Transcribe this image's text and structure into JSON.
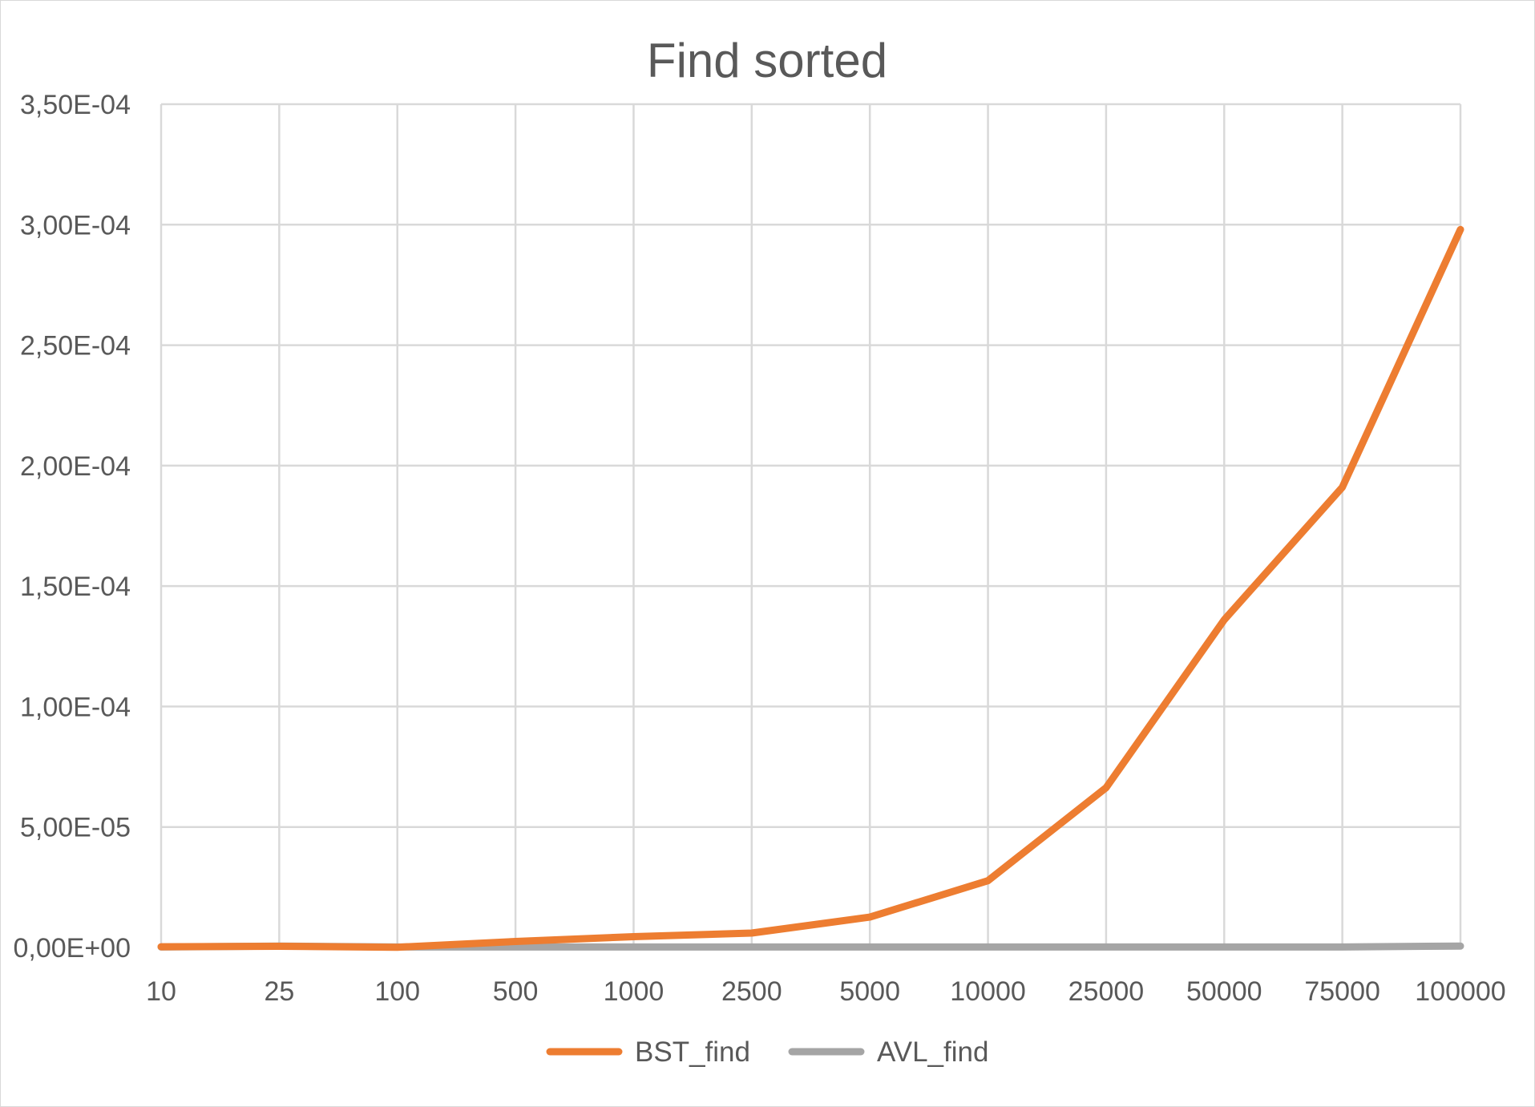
{
  "chart_data": {
    "type": "line",
    "title": "Find sorted",
    "xlabel": "",
    "ylabel": "",
    "categories": [
      "10",
      "25",
      "100",
      "500",
      "1000",
      "2500",
      "5000",
      "10000",
      "25000",
      "50000",
      "75000",
      "100000"
    ],
    "ylim": [
      0,
      0.00035
    ],
    "y_ticks": [
      0,
      5e-05,
      0.0001,
      0.00015,
      0.0002,
      0.00025,
      0.0003,
      0.00035
    ],
    "y_tick_labels": [
      "0,00E+00",
      "5,00E-05",
      "1,00E-04",
      "1,50E-04",
      "2,00E-04",
      "2,50E-04",
      "3,00E-04",
      "3,50E-04"
    ],
    "grid": true,
    "legend_position": "bottom",
    "series": [
      {
        "name": "BST_find",
        "color": "#ed7d31",
        "values": [
          3e-07,
          5e-07,
          1e-07,
          2.5e-06,
          4.5e-06,
          6e-06,
          1.26e-05,
          2.77e-05,
          6.63e-05,
          0.000136,
          0.000191,
          0.000298
        ]
      },
      {
        "name": "AVL_find",
        "color": "#a5a5a5",
        "values": [
          2e-07,
          6e-07,
          2e-07,
          2e-07,
          2e-07,
          2e-07,
          2e-07,
          2e-07,
          2e-07,
          2e-07,
          2e-07,
          6e-07
        ]
      }
    ]
  }
}
